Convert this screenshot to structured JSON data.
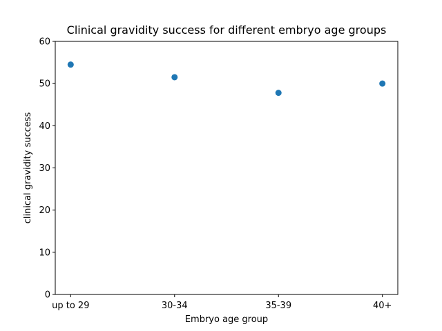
{
  "chart_data": {
    "type": "scatter",
    "title": "Clinical gravidity success for different embryo age groups",
    "xlabel": "Embryo age group",
    "ylabel": "clinical gravidity success",
    "categories": [
      "up to 29",
      "30-34",
      "35-39",
      "40+"
    ],
    "values": [
      54.5,
      51.5,
      47.8,
      50.0
    ],
    "ylim": [
      0,
      60
    ],
    "yticks": [
      0,
      10,
      20,
      30,
      40,
      50,
      60
    ],
    "grid": false,
    "marker_color": "#1f77b4"
  }
}
